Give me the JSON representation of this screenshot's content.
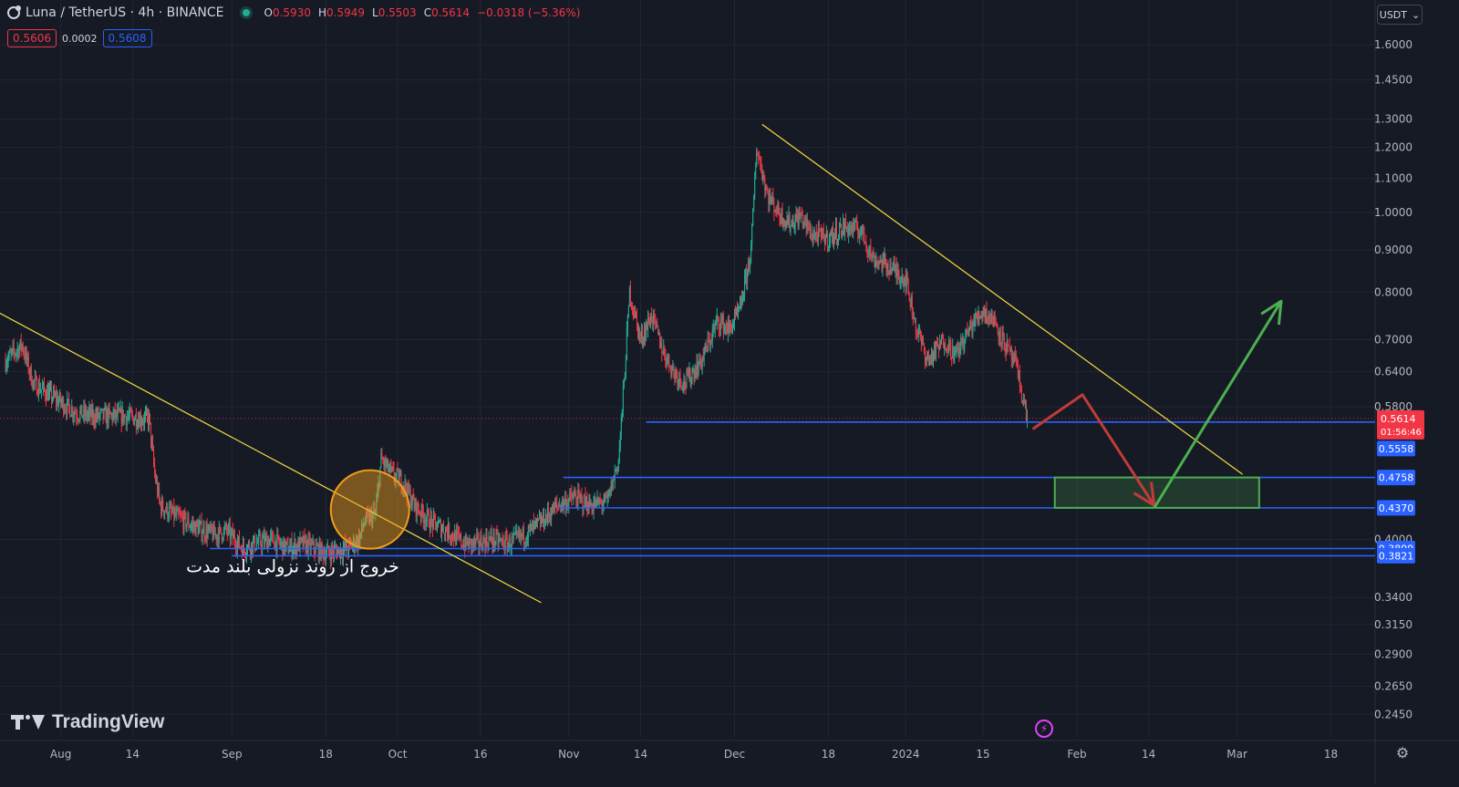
{
  "header": {
    "title": "Luna / TetherUS · 4h · BINANCE",
    "ohlc": [
      {
        "k": "O",
        "v": "0.5930"
      },
      {
        "k": "H",
        "v": "0.5949"
      },
      {
        "k": "L",
        "v": "0.5503"
      },
      {
        "k": "C",
        "v": "0.5614"
      },
      {
        "k": "",
        "v": "−0.0318 (−5.36%)"
      }
    ]
  },
  "bidask": {
    "sell": "0.5606",
    "spread": "0.0002",
    "buy": "0.5608"
  },
  "currency": "USDT",
  "brand": "TradingView",
  "icons": [
    "luna-symbol-icon",
    "live-status-icon",
    "chevron-down-icon",
    "lightning-icon",
    "gear-icon"
  ],
  "colors": {
    "background": "#161a25",
    "grid": "#232632",
    "up": "#22ab94",
    "down": "#f23645",
    "trendline": "#f5dc42",
    "level": "#2962ff",
    "arrow_down": "#c23b3b",
    "arrow_up": "#4caf50",
    "zone": "#4caf50",
    "circle": "#f29d1b"
  },
  "chart_data": {
    "type": "candlestick",
    "symbol": "Luna / TetherUS",
    "interval": "4h",
    "exchange": "BINANCE",
    "y_scale": "log",
    "ylim": [
      0.23,
      1.68
    ],
    "y_ticks": [
      "1.6000",
      "1.4500",
      "1.3000",
      "1.2000",
      "1.1000",
      "1.0000",
      "0.9000",
      "0.8000",
      "0.7000",
      "0.6400",
      "0.5800",
      "0.4000",
      "0.3400",
      "0.3150",
      "0.2900",
      "0.2650",
      "0.2450"
    ],
    "x_ticks": [
      {
        "label": "Aug",
        "date": "2023-08-01"
      },
      {
        "label": "14",
        "date": "2023-08-14"
      },
      {
        "label": "Sep",
        "date": "2023-09-01"
      },
      {
        "label": "18",
        "date": "2023-09-18"
      },
      {
        "label": "Oct",
        "date": "2023-10-01"
      },
      {
        "label": "16",
        "date": "2023-10-16"
      },
      {
        "label": "Nov",
        "date": "2023-11-01"
      },
      {
        "label": "14",
        "date": "2023-11-14"
      },
      {
        "label": "Dec",
        "date": "2023-12-01"
      },
      {
        "label": "18",
        "date": "2023-12-18"
      },
      {
        "label": "2024",
        "date": "2024-01-01"
      },
      {
        "label": "15",
        "date": "2024-01-15"
      },
      {
        "label": "Feb",
        "date": "2024-02-01"
      },
      {
        "label": "14",
        "date": "2024-02-14"
      },
      {
        "label": "Mar",
        "date": "2024-03-01"
      },
      {
        "label": "18",
        "date": "2024-03-18"
      }
    ],
    "price_path": [
      [
        "2023-07-22",
        0.66
      ],
      [
        "2023-07-25",
        0.69
      ],
      [
        "2023-07-27",
        0.62
      ],
      [
        "2023-07-30",
        0.6
      ],
      [
        "2023-08-04",
        0.57
      ],
      [
        "2023-08-07",
        0.565
      ],
      [
        "2023-08-12",
        0.565
      ],
      [
        "2023-08-17",
        0.56
      ],
      [
        "2023-08-18",
        0.48
      ],
      [
        "2023-08-19",
        0.44
      ],
      [
        "2023-08-21",
        0.43
      ],
      [
        "2023-08-25",
        0.415
      ],
      [
        "2023-08-29",
        0.405
      ],
      [
        "2023-08-31",
        0.41
      ],
      [
        "2023-09-03",
        0.39
      ],
      [
        "2023-09-05",
        0.395
      ],
      [
        "2023-09-08",
        0.4
      ],
      [
        "2023-09-11",
        0.39
      ],
      [
        "2023-09-14",
        0.395
      ],
      [
        "2023-09-18",
        0.385
      ],
      [
        "2023-09-22",
        0.39
      ],
      [
        "2023-09-24",
        0.4
      ],
      [
        "2023-09-25",
        0.42
      ],
      [
        "2023-09-27",
        0.43
      ],
      [
        "2023-09-28",
        0.5
      ],
      [
        "2023-09-30",
        0.48
      ],
      [
        "2023-10-02",
        0.47
      ],
      [
        "2023-10-04",
        0.44
      ],
      [
        "2023-10-07",
        0.42
      ],
      [
        "2023-10-10",
        0.41
      ],
      [
        "2023-10-13",
        0.395
      ],
      [
        "2023-10-15",
        0.395
      ],
      [
        "2023-10-18",
        0.4
      ],
      [
        "2023-10-21",
        0.395
      ],
      [
        "2023-10-24",
        0.405
      ],
      [
        "2023-10-27",
        0.42
      ],
      [
        "2023-10-30",
        0.44
      ],
      [
        "2023-11-02",
        0.45
      ],
      [
        "2023-11-05",
        0.44
      ],
      [
        "2023-11-08",
        0.445
      ],
      [
        "2023-11-10",
        0.5
      ],
      [
        "2023-11-11",
        0.62
      ],
      [
        "2023-11-12",
        0.8
      ],
      [
        "2023-11-14",
        0.7
      ],
      [
        "2023-11-16",
        0.75
      ],
      [
        "2023-11-18",
        0.68
      ],
      [
        "2023-11-20",
        0.64
      ],
      [
        "2023-11-22",
        0.62
      ],
      [
        "2023-11-25",
        0.66
      ],
      [
        "2023-11-28",
        0.74
      ],
      [
        "2023-11-30",
        0.72
      ],
      [
        "2023-12-02",
        0.76
      ],
      [
        "2023-12-04",
        0.9
      ],
      [
        "2023-12-05",
        1.2
      ],
      [
        "2023-12-07",
        1.05
      ],
      [
        "2023-12-09",
        1.0
      ],
      [
        "2023-12-11",
        0.97
      ],
      [
        "2023-12-13",
        0.99
      ],
      [
        "2023-12-15",
        0.94
      ],
      [
        "2023-12-18",
        0.93
      ],
      [
        "2023-12-21",
        0.96
      ],
      [
        "2023-12-24",
        0.95
      ],
      [
        "2023-12-26",
        0.88
      ],
      [
        "2023-12-29",
        0.86
      ],
      [
        "2024-01-01",
        0.83
      ],
      [
        "2024-01-03",
        0.72
      ],
      [
        "2024-01-05",
        0.66
      ],
      [
        "2024-01-08",
        0.7
      ],
      [
        "2024-01-10",
        0.67
      ],
      [
        "2024-01-13",
        0.73
      ],
      [
        "2024-01-15",
        0.76
      ],
      [
        "2024-01-17",
        0.74
      ],
      [
        "2024-01-19",
        0.69
      ],
      [
        "2024-01-21",
        0.65
      ],
      [
        "2024-01-23",
        0.5614
      ]
    ],
    "current_price": {
      "value": "0.5614",
      "countdown": "01:56:46"
    },
    "horizontal_levels": [
      "0.5558",
      "0.4758",
      "0.4370",
      "0.3899",
      "0.3821"
    ],
    "trendlines": [
      {
        "from": [
          "2023-07-20",
          0.76
        ],
        "to": [
          "2023-10-27",
          0.335
        ]
      },
      {
        "from": [
          "2023-12-06",
          1.28
        ],
        "to": [
          "2024-03-02",
          0.48
        ]
      }
    ],
    "projection_zone": {
      "from": "2024-01-28",
      "to": "2024-03-05",
      "low": 0.437,
      "high": 0.4758
    },
    "projection_arrows": [
      {
        "color": "red",
        "points": [
          [
            "2024-01-24",
            0.545
          ],
          [
            "2024-02-02",
            0.6
          ],
          [
            "2024-02-15",
            0.44
          ]
        ]
      },
      {
        "color": "green",
        "points": [
          [
            "2024-02-15",
            0.437
          ],
          [
            "2024-03-09",
            0.78
          ]
        ]
      }
    ],
    "breakout_circle": {
      "date": "2023-09-26",
      "price": 0.435
    },
    "annotation": "خروج از روند نزولی بلند مدت"
  }
}
